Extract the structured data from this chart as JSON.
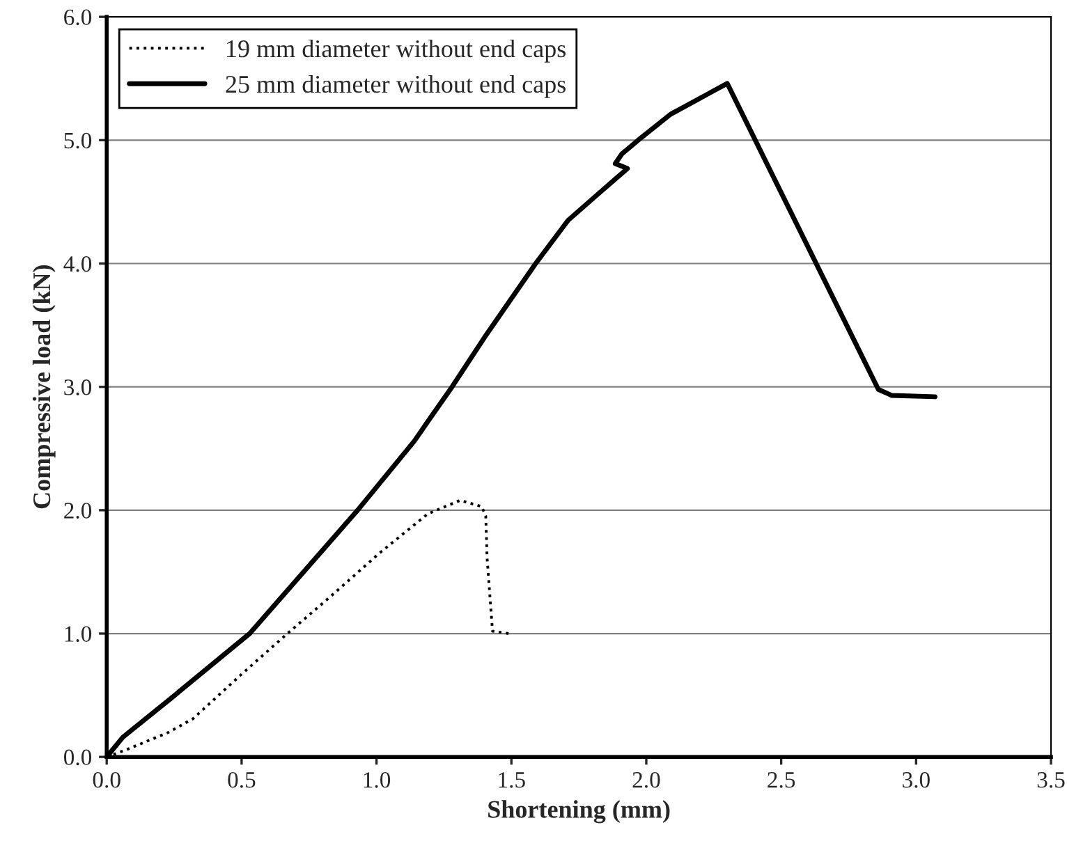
{
  "chart_data": {
    "type": "line",
    "xlabel": "Shortening (mm)",
    "ylabel": "Compressive load (kN)",
    "xlim": [
      0,
      3.5
    ],
    "xticks": [
      {
        "value": 0,
        "label": "0.0"
      },
      {
        "value": 0.5,
        "label": "0.5"
      },
      {
        "value": 1,
        "label": "1.0"
      },
      {
        "value": 1.5,
        "label": "1.5"
      },
      {
        "value": 2,
        "label": "2.0"
      },
      {
        "value": 2.5,
        "label": "2.5"
      },
      {
        "value": 3,
        "label": "3.0"
      },
      {
        "value": 3.5,
        "label": "3.5"
      }
    ],
    "ylim": [
      0,
      6
    ],
    "yticks": [
      {
        "value": 0,
        "label": "0.0"
      },
      {
        "value": 1,
        "label": "1.0"
      },
      {
        "value": 2,
        "label": "2.0"
      },
      {
        "value": 3,
        "label": "3.0"
      },
      {
        "value": 4,
        "label": "4.0"
      },
      {
        "value": 5,
        "label": "5.0"
      },
      {
        "value": 6,
        "label": "6.0"
      }
    ],
    "grid": "y",
    "legend": "top left",
    "marker": "none",
    "series": [
      {
        "name": "19 mm diameter without end caps",
        "color": "#000000",
        "line_style": "dotted",
        "x": [
          0,
          0.075,
          0.23,
          0.32,
          0.51,
          0.67,
          0.84,
          1.01,
          1.19,
          1.31,
          1.39,
          1.405,
          1.41,
          1.43,
          1.49
        ],
        "values": [
          0,
          0.06,
          0.2,
          0.31,
          0.69,
          1.0,
          1.32,
          1.65,
          1.97,
          2.08,
          2.03,
          1.95,
          1.61,
          1.02,
          1.0
        ]
      },
      {
        "name": "25 mm diameter without end caps",
        "color": "#000000",
        "line_style": "solid",
        "x": [
          0,
          0.06,
          0.23,
          0.53,
          0.93,
          1.14,
          1.2,
          1.28,
          1.4,
          1.59,
          1.71,
          1.83,
          1.93,
          1.885,
          1.91,
          1.97,
          2.09,
          2.3,
          2.86,
          2.91,
          3.07
        ],
        "values": [
          0,
          0.16,
          0.46,
          1.0,
          2.0,
          2.56,
          2.75,
          3.0,
          3.4,
          4.0,
          4.35,
          4.58,
          4.77,
          4.81,
          4.89,
          5.0,
          5.21,
          5.46,
          2.98,
          2.93,
          2.92
        ]
      }
    ]
  }
}
